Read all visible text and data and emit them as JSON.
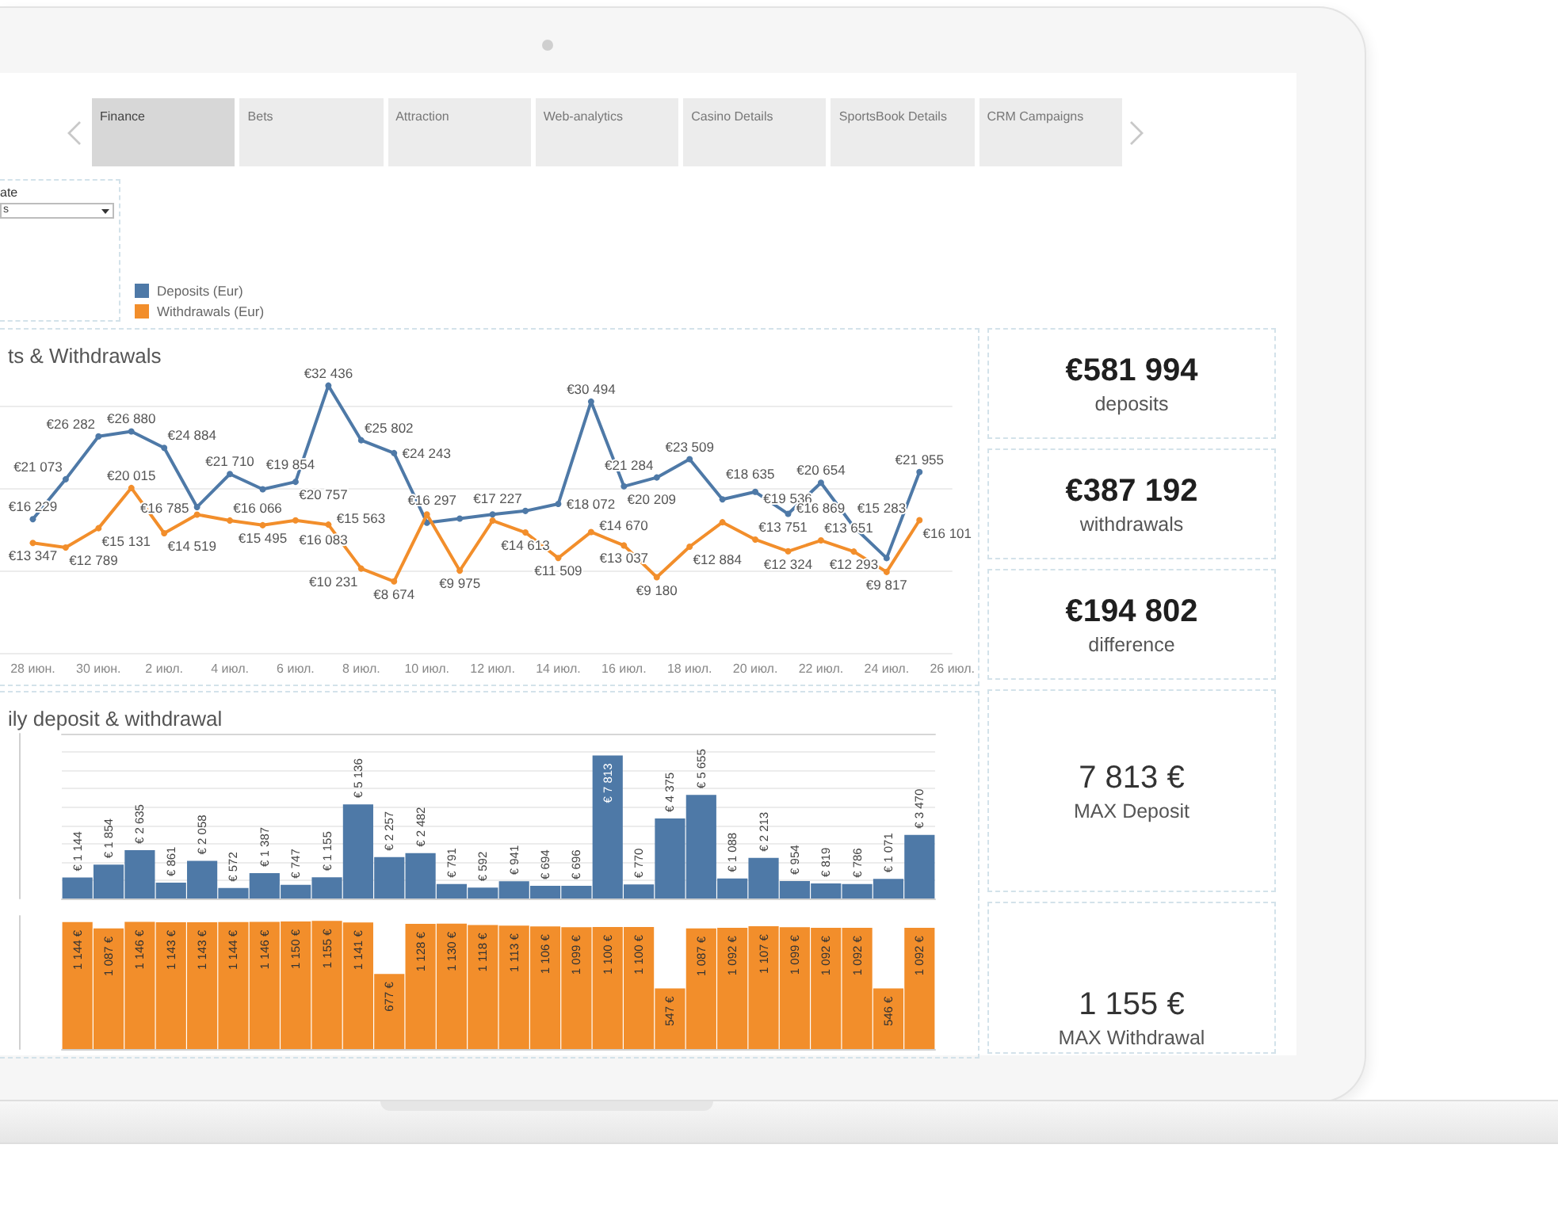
{
  "chart_data": [
    {
      "type": "other",
      "annotations": [
        "Finance",
        "Bets",
        "Attraction",
        "Web-analytics",
        "Casino Details",
        "SportsBook Details",
        "CRM Campaigns"
      ]
    },
    {
      "type": "other",
      "title": "ate",
      "annotations": [
        "s"
      ]
    },
    {
      "type": "line",
      "title": "ts & Withdrawals",
      "x": [
        "--06-28",
        "--06-29",
        "--06-30",
        "--07-01",
        "--07-02",
        "--07-03",
        "--07-04",
        "--07-05",
        "--07-06",
        "--07-07",
        "--07-08",
        "--07-09",
        "--07-10",
        "--07-11",
        "--07-12",
        "--07-13",
        "--07-14",
        "--07-15",
        "--07-16",
        "--07-17",
        "--07-18",
        "--07-19",
        "--07-20",
        "--07-21",
        "--07-22",
        "--07-23",
        "--07-24",
        "--07-25"
      ],
      "series": [
        {
          "name": "Deposits (Eur)",
          "color": "#4e79a7",
          "values": [
            16229,
            21073,
            26282,
            26880,
            24884,
            17700,
            21710,
            19854,
            20757,
            32436,
            25802,
            24243,
            15800,
            16297,
            16800,
            17227,
            18072,
            30494,
            20209,
            21284,
            23509,
            18635,
            19536,
            16869,
            20654,
            15283,
            11500,
            21955
          ],
          "value_labels": [
            "€16 229",
            "€21 073",
            "€26 282",
            "€26 880",
            "€24 884",
            null,
            "€21 710",
            "€19 854",
            "€20 757",
            "€32 436",
            "€25 802",
            "€24 243",
            null,
            "€16 297",
            null,
            "€17 227",
            "€18 072",
            "€30 494",
            "€20 209",
            "€21 284",
            "€23 509",
            "€18 635",
            "€19 536",
            "€16 869",
            "€20 654",
            "€15 283",
            null,
            "€21 955"
          ]
        },
        {
          "name": "Withdrawals (Eur)",
          "color": "#f28e2b",
          "values": [
            13347,
            12789,
            15131,
            20015,
            14519,
            16785,
            16066,
            15495,
            16083,
            15563,
            10231,
            8674,
            16800,
            9975,
            16050,
            14613,
            11509,
            14670,
            13037,
            9180,
            12884,
            15850,
            13751,
            12324,
            13651,
            12293,
            9817,
            16101
          ],
          "value_labels": [
            "€13 347",
            "€12 789",
            "€15 131",
            "€20 015",
            "€14 519",
            "€16 785",
            "€16 066",
            "€15 495",
            "€16 083",
            "€15 563",
            "€10 231",
            "€8 674",
            null,
            "€9 975",
            null,
            "€14 613",
            "€11 509",
            "€14 670",
            "€13 037",
            "€9 180",
            "€12 884",
            null,
            "€13 751",
            "€12 324",
            "€13 651",
            "€12 293",
            "€9 817",
            "€16 101"
          ]
        }
      ],
      "xlim": [
        "--06-27",
        "--07-26"
      ],
      "xticks": [
        {
          "value": "--06-28",
          "label": "28 июн."
        },
        {
          "value": "--06-30",
          "label": "30 июн."
        },
        {
          "value": "--07-02",
          "label": "2 июл."
        },
        {
          "value": "--07-04",
          "label": "4 июл."
        },
        {
          "value": "--07-06",
          "label": "6 июл."
        },
        {
          "value": "--07-08",
          "label": "8 июл."
        },
        {
          "value": "--07-10",
          "label": "10 июл."
        },
        {
          "value": "--07-12",
          "label": "12 июл."
        },
        {
          "value": "--07-14",
          "label": "14 июл."
        },
        {
          "value": "--07-16",
          "label": "16 июл."
        },
        {
          "value": "--07-18",
          "label": "18 июл."
        },
        {
          "value": "--07-20",
          "label": "20 июл."
        },
        {
          "value": "--07-22",
          "label": "22 июл."
        },
        {
          "value": "--07-24",
          "label": "24 июл."
        },
        {
          "value": "--07-26",
          "label": "26 июл."
        }
      ],
      "yticks": [
        0,
        10000,
        20000,
        30000
      ],
      "tick_labels": "x",
      "grid": "y",
      "legend": "top left",
      "marker": "circle"
    },
    {
      "type": "bar",
      "title": "ily deposit & withdrawal",
      "categories": [
        null,
        null,
        null,
        null,
        null,
        null,
        null,
        null,
        null,
        null,
        null,
        null,
        null,
        null,
        null,
        null,
        null,
        null,
        null,
        null,
        null,
        null,
        null,
        null,
        null,
        null,
        null,
        null
      ],
      "values": [
        1144,
        1854,
        2635,
        861,
        2058,
        572,
        1387,
        747,
        1155,
        5136,
        2257,
        2482,
        791,
        592,
        941,
        694,
        696,
        7813,
        770,
        4375,
        5655,
        1088,
        2213,
        954,
        819,
        786,
        1071,
        3470
      ],
      "value_labels": [
        "€ 1 144",
        "€ 1 854",
        "€ 2 635",
        "€ 861",
        "€ 2 058",
        "€ 572",
        "€ 1 387",
        "€ 747",
        "€ 1 155",
        "€ 5 136",
        "€ 2 257",
        "€ 2 482",
        "€ 791",
        "€ 592",
        "€ 941",
        "€ 694",
        "€ 696",
        "€ 7 813",
        "€ 770",
        "€ 4 375",
        "€ 5 655",
        "€ 1 088",
        "€ 2 213",
        "€ 954",
        "€ 819",
        "€ 786",
        "€ 1 071",
        "€ 3 470"
      ],
      "color": "#4e79a7",
      "ylim": [
        0,
        9000
      ],
      "yticks": [
        0,
        1000,
        2000,
        3000,
        4000,
        5000,
        6000,
        7000,
        8000
      ],
      "tick_labels": false,
      "grid": "y"
    },
    {
      "type": "bar",
      "categories": [
        null,
        null,
        null,
        null,
        null,
        null,
        null,
        null,
        null,
        null,
        null,
        null,
        null,
        null,
        null,
        null,
        null,
        null,
        null,
        null,
        null,
        null,
        null,
        null,
        null,
        null,
        null,
        null
      ],
      "values": [
        1144,
        1087,
        1146,
        1143,
        1143,
        1144,
        1146,
        1150,
        1155,
        1141,
        677,
        1128,
        1130,
        1118,
        1113,
        1106,
        1099,
        1100,
        1100,
        547,
        1087,
        1092,
        1107,
        1099,
        1092,
        1092,
        546,
        1092
      ],
      "value_labels": [
        "1 144 €",
        "1 087 €",
        "1 146 €",
        "1 143 €",
        "1 143 €",
        "1 144 €",
        "1 146 €",
        "1 150 €",
        "1 155 €",
        "1 141 €",
        "677 €",
        "1 128 €",
        "1 130 €",
        "1 118 €",
        "1 113 €",
        "1 106 €",
        "1 099 €",
        "1 100 €",
        "1 100 €",
        "547 €",
        "1 087 €",
        "1 092 €",
        "1 107 €",
        "1 099 €",
        "1 092 €",
        "1 092 €",
        "546 €",
        "1 092 €"
      ],
      "color": "#f28e2b",
      "tick_labels": false
    },
    {
      "type": "other",
      "title": "€581 994",
      "subtitle": "deposits"
    },
    {
      "type": "other",
      "title": "€387 192",
      "subtitle": "withdrawals"
    },
    {
      "type": "other",
      "title": "€194 802",
      "subtitle": "difference"
    },
    {
      "type": "other",
      "title": "7 813 €",
      "subtitle": "MAX Deposit"
    },
    {
      "type": "other",
      "title": "1 155 €",
      "subtitle": "MAX Withdrawal"
    }
  ]
}
